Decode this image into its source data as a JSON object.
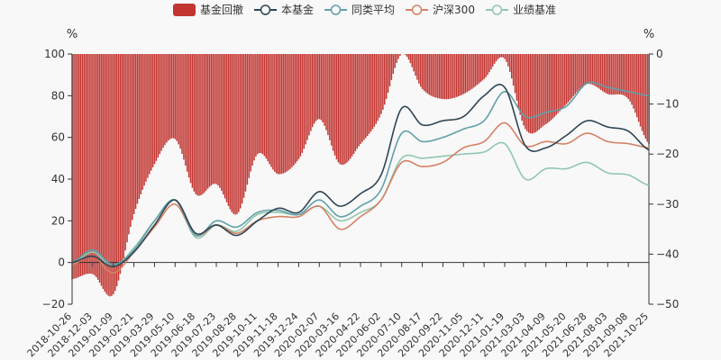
{
  "chart_data": {
    "type": "line",
    "legend": [
      {
        "key": "drawdown",
        "label": "基金回撤",
        "color": "#c23531",
        "kind": "bar"
      },
      {
        "key": "fund",
        "label": "本基金",
        "color": "#2f4554",
        "kind": "line"
      },
      {
        "key": "peer",
        "label": "同类平均",
        "color": "#61a0a8",
        "kind": "line"
      },
      {
        "key": "hs300",
        "label": "沪深300",
        "color": "#d48265",
        "kind": "line"
      },
      {
        "key": "bench",
        "label": "业绩基准",
        "color": "#91c7ae",
        "kind": "line"
      }
    ],
    "y_left": {
      "unit": "%",
      "range": [
        -20,
        100
      ],
      "ticks": [
        "100",
        "80",
        "60",
        "40",
        "20",
        "0",
        "−20"
      ]
    },
    "y_right": {
      "unit": "%",
      "range": [
        -50,
        0
      ],
      "ticks": [
        "0",
        "−10",
        "−20",
        "−30",
        "−40",
        "−50"
      ]
    },
    "x_labels": [
      "2018-10-26",
      "2018-12-03",
      "2019-01-09",
      "2019-02-21",
      "2019-03-29",
      "2019-05-10",
      "2019-06-18",
      "2019-07-23",
      "2019-08-28",
      "2019-10-11",
      "2019-11-18",
      "2019-12-24",
      "2020-02-07",
      "2020-03-16",
      "2020-04-22",
      "2020-06-02",
      "2020-07-10",
      "2020-08-17",
      "2020-09-22",
      "2020-11-05",
      "2020-12-11",
      "2021-01-19",
      "2021-03-03",
      "2021-04-09",
      "2021-05-20",
      "2021-06-28",
      "2021-08-03",
      "2021-09-08",
      "2021-10-25"
    ],
    "series": [
      {
        "key": "fund",
        "values": [
          0,
          3,
          -2,
          5,
          18,
          30,
          14,
          18,
          13,
          20,
          26,
          24,
          34,
          27,
          33,
          42,
          74,
          66,
          68,
          70,
          80,
          84,
          56,
          55,
          61,
          68,
          65,
          63,
          54
        ]
      },
      {
        "key": "peer",
        "values": [
          0,
          6,
          -1,
          6,
          20,
          30,
          13,
          20,
          17,
          24,
          25,
          23,
          30,
          22,
          27,
          35,
          62,
          58,
          60,
          64,
          68,
          82,
          70,
          72,
          75,
          86,
          84,
          82,
          80
        ]
      },
      {
        "key": "hs300",
        "values": [
          -1,
          3,
          -5,
          5,
          17,
          28,
          13,
          18,
          14,
          20,
          22,
          22,
          27,
          16,
          22,
          30,
          48,
          46,
          48,
          55,
          58,
          67,
          56,
          58,
          57,
          62,
          58,
          57,
          55
        ]
      },
      {
        "key": "bench",
        "values": [
          -1,
          5,
          -2,
          7,
          20,
          30,
          12,
          18,
          15,
          23,
          24,
          23,
          27,
          20,
          24,
          30,
          50,
          50,
          51,
          52,
          53,
          57,
          40,
          45,
          45,
          48,
          43,
          42,
          37
        ]
      },
      {
        "key": "drawdown",
        "axis": "right",
        "values": [
          -45,
          -44,
          -48,
          -32,
          -22,
          -17,
          -28,
          -26,
          -32,
          -20,
          -24,
          -21,
          -13,
          -22,
          -18,
          -12,
          0,
          -7,
          -9,
          -8,
          -5,
          -1,
          -15,
          -14,
          -10,
          -6,
          -8,
          -9,
          -18
        ]
      }
    ]
  }
}
